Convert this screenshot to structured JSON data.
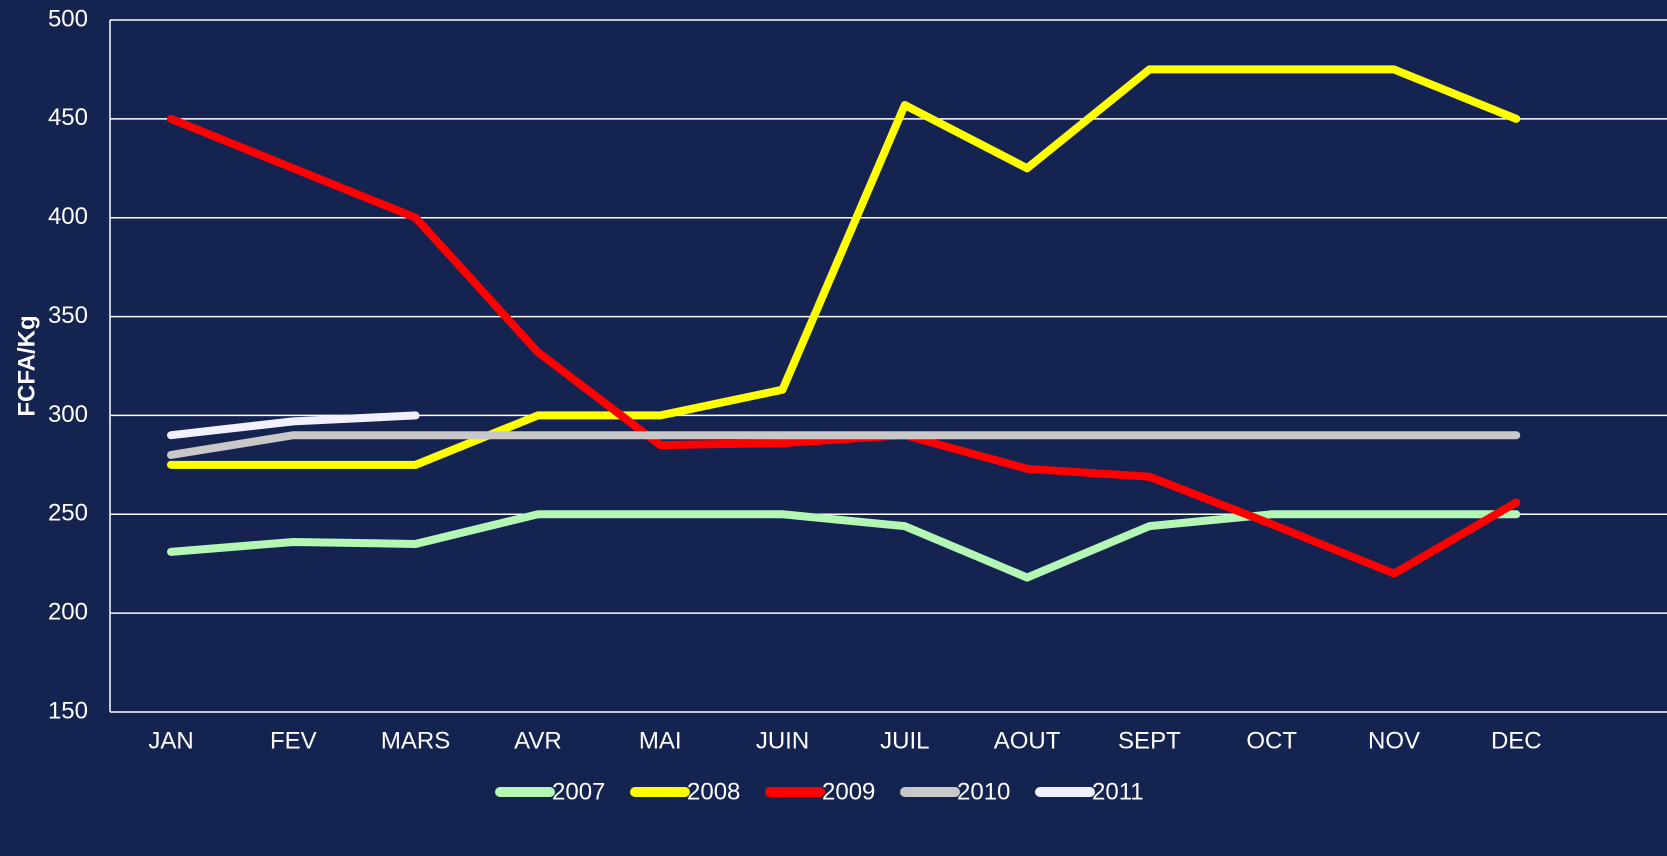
{
  "chart_data": {
    "type": "line",
    "y_label": "FCFA/Kg",
    "categories": [
      "JAN",
      "FEV",
      "MARS",
      "AVR",
      "MAI",
      "JUIN",
      "JUIL",
      "AOUT",
      "SEPT",
      "OCT",
      "NOV",
      "DEC"
    ],
    "series": [
      {
        "name": "2007",
        "color": "#b4f7b4",
        "values": [
          231,
          236,
          235,
          250,
          250,
          250,
          244,
          218,
          244,
          250,
          250,
          250
        ]
      },
      {
        "name": "2008",
        "color": "#ffff00",
        "values": [
          275,
          275,
          275,
          300,
          300,
          313,
          457,
          425,
          475,
          475,
          475,
          450
        ]
      },
      {
        "name": "2009",
        "color": "#ff0000",
        "values": [
          450,
          425,
          400,
          332,
          285,
          286,
          290,
          273,
          269,
          245,
          220,
          256
        ]
      },
      {
        "name": "2010",
        "color": "#c8c8c8",
        "values": [
          280,
          290,
          290,
          290,
          290,
          290,
          290,
          290,
          290,
          290,
          290,
          290
        ]
      },
      {
        "name": "2011",
        "color": "#f0f0ff",
        "values": [
          290,
          297,
          300,
          null,
          null,
          null,
          null,
          null,
          null,
          null,
          null,
          null
        ]
      }
    ],
    "ylim": [
      150,
      500
    ],
    "yticks": [
      150,
      200,
      250,
      300,
      350,
      400,
      450,
      500
    ],
    "grid": true,
    "legend": "bottom"
  }
}
